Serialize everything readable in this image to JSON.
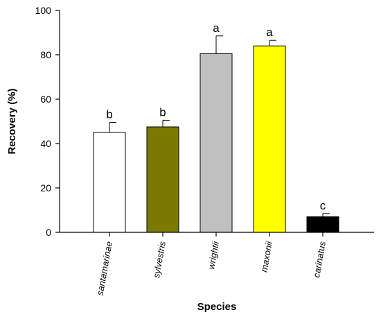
{
  "chart_data": {
    "type": "bar",
    "xlabel": "Species",
    "ylabel": "Recovery (%)",
    "ylim": [
      0,
      100
    ],
    "yticks": [
      0,
      20,
      40,
      60,
      80,
      100
    ],
    "categories": [
      "santamarinae",
      "sylvestris",
      "wrightii",
      "maxonii",
      "carinatus"
    ],
    "values": [
      45,
      47.5,
      80.5,
      84,
      7
    ],
    "errors": [
      4.5,
      3,
      8,
      2.5,
      1.5
    ],
    "significance_letters": [
      "b",
      "b",
      "a",
      "a",
      "c"
    ],
    "bar_colors": [
      "#ffffff",
      "#7a7a00",
      "#c0c0c0",
      "#ffff00",
      "#000000"
    ],
    "grid": false
  }
}
